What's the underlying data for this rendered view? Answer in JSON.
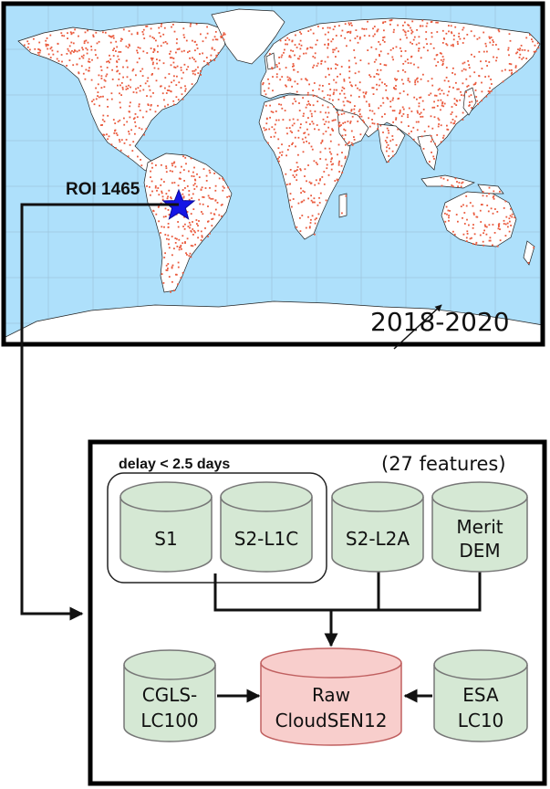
{
  "map": {
    "roi_label": "ROI 1465",
    "years_label": "2018-2020",
    "ocean_color": "#aee0fb",
    "land_color": "#ffffff",
    "sample_color": "#ea5a3d",
    "marker_color": "#1515e6",
    "marker_icon": "star-icon"
  },
  "pipeline": {
    "group_label": "delay < 2.5 days",
    "features_label": "(27 features)",
    "cyl_fill": "#d5e8d4",
    "cyl_stroke": "#777777",
    "raw_fill": "#f8cecc",
    "raw_stroke": "#c06060",
    "sources": [
      {
        "line1": "S1",
        "line2": ""
      },
      {
        "line1": "S2-L1C",
        "line2": ""
      },
      {
        "line1": "S2-L2A",
        "line2": ""
      },
      {
        "line1": "Merit",
        "line2": "DEM"
      }
    ],
    "left_source": {
      "line1": "CGLS-",
      "line2": "LC100"
    },
    "right_source": {
      "line1": "ESA",
      "line2": "LC10"
    },
    "target": {
      "line1": "Raw",
      "line2": "CloudSEN12"
    }
  }
}
